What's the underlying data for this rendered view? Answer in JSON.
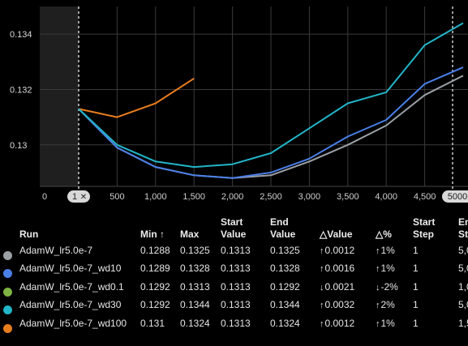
{
  "chart_data": {
    "type": "line",
    "x_ticks": [
      "0",
      "500",
      "1,000",
      "1,500",
      "2,000",
      "2,500",
      "3,000",
      "3,500",
      "4,000",
      "4,500"
    ],
    "y_ticks": [
      "0.134",
      "0.132",
      "0.13"
    ],
    "ylim": [
      0.1285,
      0.135
    ],
    "xlim": [
      0,
      5000
    ],
    "range_start_label": "1",
    "range_end_label": "5000",
    "grid": true,
    "series": [
      {
        "name": "AdamW_lr5.0e-7",
        "color": "#9aa0a6",
        "x": [
          0,
          500,
          1000,
          1500,
          2000,
          2500,
          3000,
          3500,
          4000,
          4500,
          5000
        ],
        "y": [
          0.1313,
          0.1299,
          0.1292,
          0.1289,
          0.1288,
          0.1289,
          0.1294,
          0.13,
          0.1307,
          0.1318,
          0.1325
        ]
      },
      {
        "name": "AdamW_lr5.0e-7_wd10",
        "color": "#4a7fe8",
        "x": [
          0,
          500,
          1000,
          1500,
          2000,
          2500,
          3000,
          3500,
          4000,
          4500,
          5000
        ],
        "y": [
          0.1313,
          0.1299,
          0.1292,
          0.1289,
          0.1288,
          0.129,
          0.1295,
          0.1303,
          0.1309,
          0.1322,
          0.1328
        ]
      },
      {
        "name": "AdamW_lr5.0e-7_wd0.1",
        "color": "#e87d1e",
        "x": [
          0,
          500,
          1000,
          1500
        ],
        "y": [
          0.1313,
          0.131,
          0.1315,
          0.1324
        ]
      },
      {
        "name": "AdamW_lr5.0e-7_wd30",
        "color": "#22b5c8",
        "x": [
          0,
          500,
          1000,
          1500,
          2000,
          2500,
          3000,
          3500,
          4000,
          4500,
          5000
        ],
        "y": [
          0.1313,
          0.13,
          0.1294,
          0.1292,
          0.1293,
          0.1297,
          0.1306,
          0.1315,
          0.1319,
          0.1336,
          0.1344
        ]
      }
    ]
  },
  "table": {
    "headers": {
      "run": "Run",
      "min": "Min",
      "min_sort_arrow": "↑",
      "max": "Max",
      "start_value_1": "Start",
      "start_value_2": "Value",
      "end_value_1": "End",
      "end_value_2": "Value",
      "delta_value": "△Value",
      "delta_pct": "△%",
      "start_step_1": "Start",
      "start_step_2": "Step",
      "end_step_1": "En",
      "end_step_2": "St"
    },
    "rows": [
      {
        "color": "#9aa0a6",
        "run": "AdamW_lr5.0e-7",
        "min": "0.1288",
        "max": "0.1325",
        "start_value": "0.1313",
        "end_value": "0.1325",
        "dv_arrow": "↑",
        "delta_value": "0.0012",
        "dp_arrow": "↑",
        "delta_pct": "1%",
        "start_step": "1",
        "end_step": "5,0"
      },
      {
        "color": "#4a7fe8",
        "run": "AdamW_lr5.0e-7_wd10",
        "min": "0.1289",
        "max": "0.1328",
        "start_value": "0.1313",
        "end_value": "0.1328",
        "dv_arrow": "↑",
        "delta_value": "0.0016",
        "dp_arrow": "↑",
        "delta_pct": "1%",
        "start_step": "1",
        "end_step": "5,0"
      },
      {
        "color": "#7cb342",
        "run": "AdamW_lr5.0e-7_wd0.1",
        "min": "0.1292",
        "max": "0.1313",
        "start_value": "0.1313",
        "end_value": "0.1292",
        "dv_arrow": "↓",
        "delta_value": "0.0021",
        "dp_arrow": "↓",
        "delta_pct": "-2%",
        "start_step": "1",
        "end_step": "1,0"
      },
      {
        "color": "#22b5c8",
        "run": "AdamW_lr5.0e-7_wd30",
        "min": "0.1292",
        "max": "0.1344",
        "start_value": "0.1313",
        "end_value": "0.1344",
        "dv_arrow": "↑",
        "delta_value": "0.0032",
        "dp_arrow": "↑",
        "delta_pct": "2%",
        "start_step": "1",
        "end_step": "5,0"
      },
      {
        "color": "#e87d1e",
        "run": "AdamW_lr5.0e-7_wd100",
        "min": "0.131",
        "max": "0.1324",
        "start_value": "0.1313",
        "end_value": "0.1324",
        "dv_arrow": "↑",
        "delta_value": "0.0012",
        "dp_arrow": "↑",
        "delta_pct": "1%",
        "start_step": "1",
        "end_step": "1,5"
      }
    ]
  }
}
